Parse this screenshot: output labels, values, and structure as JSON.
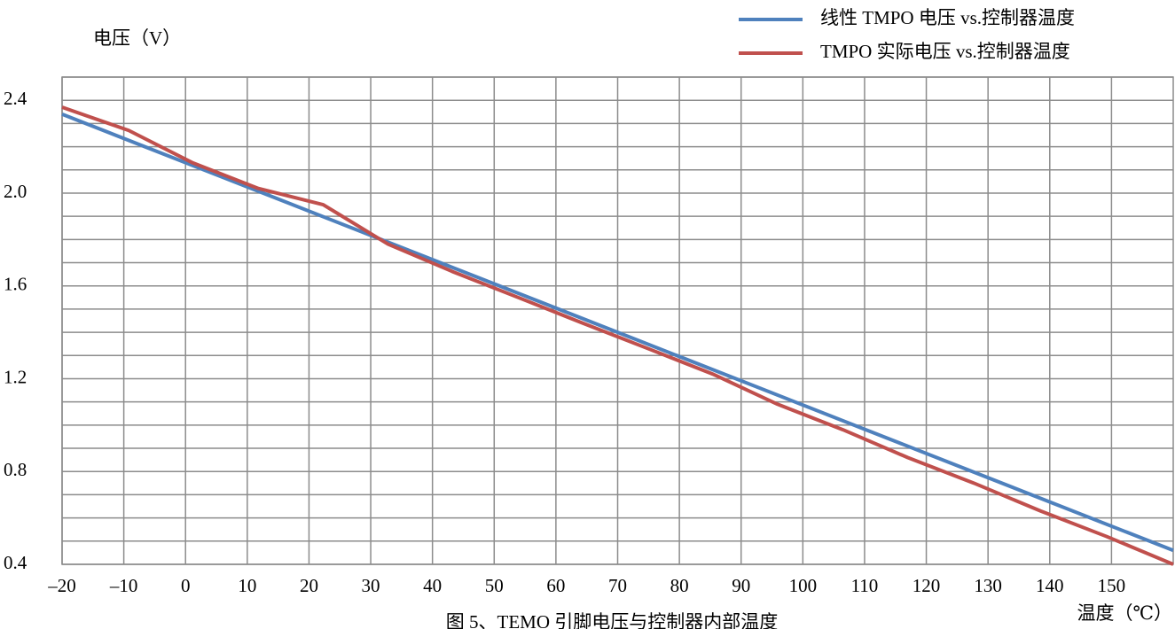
{
  "chart_data": {
    "type": "line",
    "caption": "图 5、TEMO 引脚电压与控制器内部温度",
    "x_label": "温度（℃）",
    "y_label": "电压（V）",
    "xlim": [
      -20,
      160
    ],
    "xticks": [
      {
        "value": -20,
        "label": "–20"
      },
      {
        "value": -10,
        "label": "–10"
      },
      0,
      10,
      20,
      30,
      40,
      50,
      60,
      70,
      80,
      90,
      100,
      110,
      120,
      130,
      140,
      150
    ],
    "ylim": [
      0.4,
      2.5
    ],
    "yticks": [
      0.4,
      0.8,
      1.2,
      1.6,
      {
        "value": 2,
        "label": "2.0"
      },
      2.4
    ],
    "ygrid": [
      0.4,
      0.5,
      0.6,
      0.7,
      0.8,
      0.9,
      1.0,
      1.1,
      1.2,
      1.3,
      1.4,
      1.5,
      1.6,
      1.7,
      1.8,
      1.9,
      2.0,
      2.1,
      2.2,
      2.3,
      2.4,
      2.5
    ],
    "grid": true,
    "legend": "top-right",
    "series": [
      {
        "name": "线性 TMPO 电压 vs.控制器温度",
        "color": "#4f81bd",
        "x": [
          -20,
          160
        ],
        "values": [
          2.34,
          0.46
        ]
      },
      {
        "name": "TMPO 实际电压 vs.控制器温度",
        "color": "#c0504d",
        "x": [
          -20,
          -9.2,
          1.2,
          11.8,
          22.3,
          32.8,
          43.4,
          53.9,
          64.3,
          74.9,
          85.4,
          95.9,
          106.5,
          117,
          127.7,
          138.5,
          149.2,
          160
        ],
        "values": [
          2.37,
          2.27,
          2.13,
          2.02,
          1.95,
          1.78,
          1.66,
          1.55,
          1.44,
          1.33,
          1.22,
          1.09,
          0.98,
          0.86,
          0.75,
          0.63,
          0.52,
          0.4
        ]
      }
    ]
  }
}
